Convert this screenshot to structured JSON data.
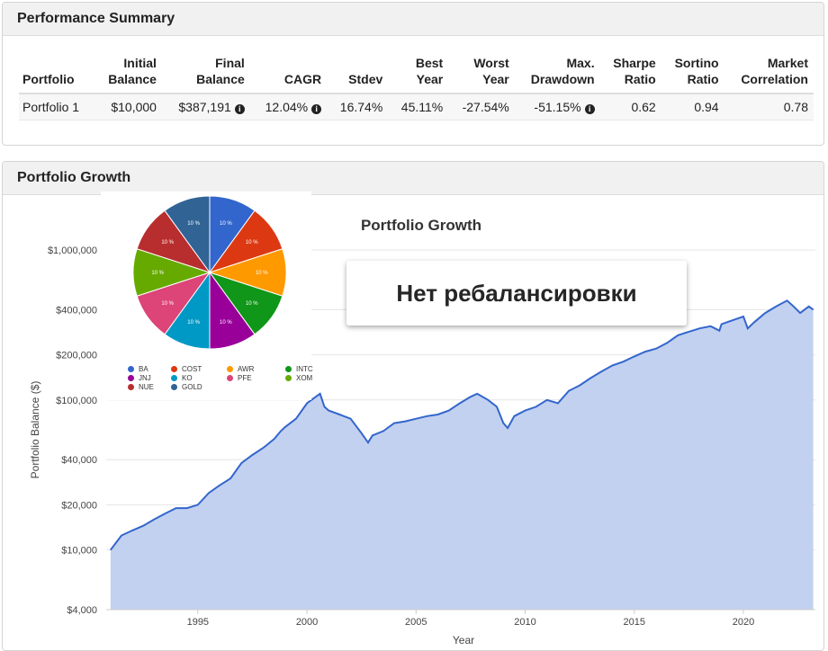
{
  "performance_summary": {
    "title": "Performance Summary",
    "headers": [
      [
        "Portfolio"
      ],
      [
        "Initial",
        "Balance"
      ],
      [
        "Final",
        "Balance"
      ],
      [
        "CAGR"
      ],
      [
        "Stdev"
      ],
      [
        "Best",
        "Year"
      ],
      [
        "Worst",
        "Year"
      ],
      [
        "Max.",
        "Drawdown"
      ],
      [
        "Sharpe",
        "Ratio"
      ],
      [
        "Sortino",
        "Ratio"
      ],
      [
        "Market",
        "Correlation"
      ]
    ],
    "row": {
      "portfolio": "Portfolio 1",
      "initial_balance": "$10,000",
      "final_balance": "$387,191",
      "cagr": "12.04%",
      "stdev": "16.74%",
      "best_year": "45.11%",
      "worst_year": "-27.54%",
      "max_drawdown": "-51.15%",
      "sharpe_ratio": "0.62",
      "sortino_ratio": "0.94",
      "market_correlation": "0.78"
    }
  },
  "growth_panel": {
    "title": "Portfolio Growth",
    "callout": "Нет ребалансировки"
  },
  "chart_data": [
    {
      "type": "area",
      "title": "Portfolio Growth",
      "xlabel": "Year",
      "ylabel": "Portfolio Balance ($)",
      "y_scale": "log",
      "ylim": [
        4000,
        1000000
      ],
      "xlim": [
        1990.8,
        2023.3
      ],
      "x_ticks": [
        1995,
        2000,
        2005,
        2010,
        2015,
        2020
      ],
      "y_ticks": [
        {
          "value": 4000,
          "label": "$4,000"
        },
        {
          "value": 10000,
          "label": "$10,000"
        },
        {
          "value": 20000,
          "label": "$20,000"
        },
        {
          "value": 40000,
          "label": "$40,000"
        },
        {
          "value": 100000,
          "label": "$100,000"
        },
        {
          "value": 200000,
          "label": "$200,000"
        },
        {
          "value": 400000,
          "label": "$400,000"
        },
        {
          "value": 1000000,
          "label": "$1,000,000"
        }
      ],
      "grid": true,
      "line_color": "#3366cc",
      "fill_color": "#c2d1f0",
      "series": [
        {
          "x": [
            1991.0,
            1991.5,
            1992.0,
            1992.5,
            1993.0,
            1993.5,
            1994.0,
            1994.5,
            1995.0,
            1995.5,
            1996.0,
            1996.5,
            1997.0,
            1997.5,
            1998.0,
            1998.5,
            1998.8,
            1999.0,
            1999.5,
            2000.0,
            2000.4,
            2000.6,
            2000.8,
            2001.0,
            2001.5,
            2002.0,
            2002.5,
            2002.8,
            2003.0,
            2003.5,
            2004.0,
            2004.5,
            2005.0,
            2005.5,
            2006.0,
            2006.5,
            2007.0,
            2007.5,
            2007.8,
            2008.3,
            2008.7,
            2009.0,
            2009.2,
            2009.5,
            2010.0,
            2010.5,
            2011.0,
            2011.5,
            2012.0,
            2012.5,
            2013.0,
            2013.5,
            2014.0,
            2014.5,
            2015.0,
            2015.5,
            2016.0,
            2016.5,
            2017.0,
            2017.5,
            2018.0,
            2018.5,
            2018.9,
            2019.0,
            2019.5,
            2020.0,
            2020.2,
            2020.5,
            2021.0,
            2021.5,
            2022.0,
            2022.3,
            2022.6,
            2022.8,
            2023.0,
            2023.2
          ],
          "y": [
            10000,
            12500,
            13500,
            14500,
            16000,
            17500,
            19000,
            19000,
            20000,
            24000,
            27000,
            30000,
            38000,
            43000,
            48000,
            55000,
            62000,
            66000,
            75000,
            95000,
            105000,
            110000,
            90000,
            85000,
            80000,
            75000,
            60000,
            52000,
            58000,
            62000,
            70000,
            72000,
            75000,
            78000,
            80000,
            85000,
            95000,
            105000,
            110000,
            100000,
            90000,
            70000,
            65000,
            78000,
            85000,
            90000,
            100000,
            95000,
            115000,
            125000,
            140000,
            155000,
            170000,
            180000,
            195000,
            210000,
            220000,
            240000,
            270000,
            285000,
            300000,
            310000,
            290000,
            320000,
            340000,
            360000,
            300000,
            330000,
            380000,
            420000,
            460000,
            420000,
            380000,
            400000,
            420000,
            400000
          ]
        }
      ]
    },
    {
      "type": "pie",
      "categories": [
        "BA",
        "COST",
        "AWR",
        "INTC",
        "JNJ",
        "KO",
        "PFE",
        "XOM",
        "NUE",
        "GOLD"
      ],
      "slice_order": [
        "BA",
        "COST",
        "AWR",
        "INTC",
        "JNJ",
        "KO",
        "PFE",
        "XOM",
        "NUE",
        "GOLD"
      ],
      "values": [
        10,
        10,
        10,
        10,
        10,
        10,
        10,
        10,
        10,
        10
      ],
      "slice_labels": [
        "10 %",
        "10 %",
        "10 %",
        "10 %",
        "10 %",
        "10 %",
        "10 %",
        "10 %",
        "10 %",
        "10 %"
      ],
      "colors": [
        "#3366cc",
        "#dc3912",
        "#ff9900",
        "#109618",
        "#990099",
        "#0099c6",
        "#dd4477",
        "#66aa00",
        "#b82e2e",
        "#316395"
      ],
      "legend_placement": "bottom"
    }
  ]
}
